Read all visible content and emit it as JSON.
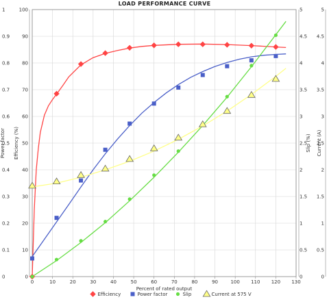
{
  "chart_data": {
    "type": "line",
    "title": "LOAD PERFORMANCE CURVE",
    "xlabel": "Percent of rated output",
    "xlim": [
      0,
      130
    ],
    "xticks": [
      0,
      10,
      20,
      30,
      40,
      50,
      60,
      70,
      80,
      90,
      100,
      110,
      120,
      130
    ],
    "axes": {
      "power_factor": {
        "label": "Power factor",
        "lim": [
          0,
          1
        ],
        "ticks": [
          "0",
          "0.1",
          "0.2",
          "0.3",
          "0.4",
          "0.5",
          "0.6",
          "0.7",
          "0.8",
          "0.9",
          "1"
        ]
      },
      "efficiency": {
        "label": "Efficiency (%)",
        "lim": [
          0,
          100
        ],
        "ticks": [
          "0",
          "10",
          "20",
          "30",
          "40",
          "50",
          "60",
          "70",
          "80",
          "90",
          "100"
        ]
      },
      "slip": {
        "label": "Slip (%)",
        "lim": [
          0,
          5
        ],
        "ticks": [
          "0",
          "0.5",
          "1",
          "1.5",
          "2",
          "2.5",
          "3",
          "3.5",
          "4",
          "4.5",
          "5"
        ]
      },
      "current": {
        "label": "Current (A)",
        "lim": [
          0,
          5
        ],
        "ticks": [
          "0",
          "0.5",
          "1",
          "1.5",
          "2",
          "2.5",
          "3",
          "3.5",
          "4",
          "4.5",
          "5"
        ]
      }
    },
    "grid": true,
    "legend_position": "bottom",
    "series": [
      {
        "name": "Efficiency",
        "axis": "efficiency",
        "color": "#ff4444",
        "marker": "diamond",
        "x": [
          0,
          12,
          24,
          36,
          48,
          60,
          72,
          84,
          96,
          108,
          120
        ],
        "y": [
          0,
          68.5,
          79.6,
          83.7,
          85.7,
          86.6,
          87.0,
          87.0,
          86.8,
          86.5,
          86.0
        ],
        "curve": [
          [
            0,
            0
          ],
          [
            1,
            25
          ],
          [
            2,
            40
          ],
          [
            3,
            48
          ],
          [
            4,
            54
          ],
          [
            6,
            60.5
          ],
          [
            8,
            64
          ],
          [
            10,
            66.3
          ],
          [
            12,
            68.3
          ],
          [
            15,
            71.5
          ],
          [
            18,
            74.8
          ],
          [
            24,
            79.3
          ],
          [
            30,
            82
          ],
          [
            36,
            83.6
          ],
          [
            42,
            84.7
          ],
          [
            48,
            85.6
          ],
          [
            54,
            86.2
          ],
          [
            60,
            86.6
          ],
          [
            72,
            87.0
          ],
          [
            84,
            87.1
          ],
          [
            96,
            86.9
          ],
          [
            108,
            86.5
          ],
          [
            120,
            86.0
          ],
          [
            125,
            85.8
          ]
        ]
      },
      {
        "name": "Power factor",
        "axis": "power_factor",
        "color": "#4a5fc8",
        "marker": "square",
        "x": [
          0,
          12,
          24,
          36,
          48,
          60,
          72,
          84,
          96,
          108,
          120
        ],
        "y": [
          0.068,
          0.22,
          0.36,
          0.475,
          0.573,
          0.648,
          0.708,
          0.755,
          0.788,
          0.81,
          0.826
        ],
        "curve": [
          [
            0,
            0.075
          ],
          [
            6,
            0.14
          ],
          [
            12,
            0.205
          ],
          [
            18,
            0.27
          ],
          [
            24,
            0.336
          ],
          [
            30,
            0.4
          ],
          [
            36,
            0.46
          ],
          [
            42,
            0.515
          ],
          [
            48,
            0.566
          ],
          [
            54,
            0.612
          ],
          [
            60,
            0.652
          ],
          [
            66,
            0.688
          ],
          [
            72,
            0.719
          ],
          [
            78,
            0.746
          ],
          [
            84,
            0.768
          ],
          [
            90,
            0.787
          ],
          [
            96,
            0.802
          ],
          [
            102,
            0.814
          ],
          [
            108,
            0.823
          ],
          [
            114,
            0.829
          ],
          [
            120,
            0.832
          ],
          [
            125,
            0.834
          ]
        ]
      },
      {
        "name": "Slip",
        "axis": "slip",
        "color": "#66dd44",
        "marker": "circle",
        "x": [
          0,
          12,
          24,
          36,
          48,
          60,
          72,
          84,
          96,
          108,
          120
        ],
        "y": [
          0,
          0.32,
          0.67,
          1.03,
          1.45,
          1.9,
          2.35,
          2.85,
          3.37,
          3.95,
          4.52
        ],
        "curve": [
          [
            0,
            0
          ],
          [
            12,
            0.3
          ],
          [
            24,
            0.64
          ],
          [
            36,
            1.01
          ],
          [
            48,
            1.42
          ],
          [
            60,
            1.86
          ],
          [
            72,
            2.33
          ],
          [
            84,
            2.83
          ],
          [
            96,
            3.36
          ],
          [
            108,
            3.93
          ],
          [
            120,
            4.53
          ],
          [
            125,
            4.78
          ]
        ]
      },
      {
        "name": "Current at 575 V",
        "axis": "current",
        "color": "#ffff88",
        "marker": "triangle",
        "x": [
          0,
          12,
          24,
          36,
          48,
          60,
          72,
          84,
          96,
          108,
          120
        ],
        "y": [
          1.7,
          1.78,
          1.9,
          2.02,
          2.2,
          2.4,
          2.6,
          2.85,
          3.1,
          3.4,
          3.7
        ],
        "curve": [
          [
            0,
            1.68
          ],
          [
            12,
            1.75
          ],
          [
            24,
            1.86
          ],
          [
            36,
            2.0
          ],
          [
            48,
            2.16
          ],
          [
            60,
            2.35
          ],
          [
            72,
            2.57
          ],
          [
            84,
            2.82
          ],
          [
            96,
            3.1
          ],
          [
            108,
            3.41
          ],
          [
            120,
            3.75
          ],
          [
            125,
            3.9
          ]
        ]
      }
    ]
  }
}
